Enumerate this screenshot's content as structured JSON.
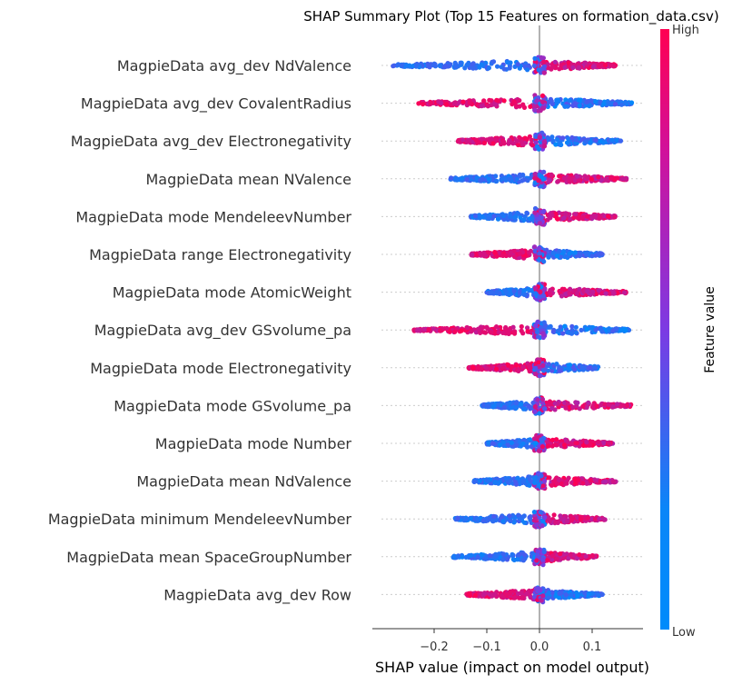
{
  "chart_data": {
    "type": "scatter",
    "subtype": "shap-beeswarm",
    "title": "SHAP Summary Plot (Top 15 Features on formation_data.csv)",
    "xlabel": "SHAP value (impact on model output)",
    "xlim": [
      -0.29,
      0.195
    ],
    "xticks": [
      -0.2,
      -0.1,
      0.0,
      0.1
    ],
    "xtick_labels": [
      "−0.2",
      "−0.1",
      "0.0",
      "0.1"
    ],
    "colorbar": {
      "label": "Feature value",
      "high": "High",
      "low": "Low"
    },
    "colors": {
      "low": "#008bfb",
      "mid": "#7c3ae3",
      "high": "#ff0052",
      "zero_line": "#999999",
      "grid": "#cccccc"
    },
    "features": [
      {
        "name": "MagpieData avg_dev NdValence",
        "min": -0.28,
        "max": 0.145,
        "low_side": "negative"
      },
      {
        "name": "MagpieData avg_dev CovalentRadius",
        "min": -0.23,
        "max": 0.175,
        "low_side": "positive"
      },
      {
        "name": "MagpieData avg_dev Electronegativity",
        "min": -0.155,
        "max": 0.155,
        "low_side": "positive"
      },
      {
        "name": "MagpieData mean NValence",
        "min": -0.17,
        "max": 0.165,
        "low_side": "negative"
      },
      {
        "name": "MagpieData mode MendeleevNumber",
        "min": -0.13,
        "max": 0.145,
        "low_side": "negative"
      },
      {
        "name": "MagpieData range Electronegativity",
        "min": -0.13,
        "max": 0.12,
        "low_side": "positive"
      },
      {
        "name": "MagpieData mode AtomicWeight",
        "min": -0.1,
        "max": 0.165,
        "low_side": "negative"
      },
      {
        "name": "MagpieData avg_dev GSvolume_pa",
        "min": -0.24,
        "max": 0.17,
        "low_side": "positive"
      },
      {
        "name": "MagpieData mode Electronegativity",
        "min": -0.135,
        "max": 0.115,
        "low_side": "positive"
      },
      {
        "name": "MagpieData mode GSvolume_pa",
        "min": -0.11,
        "max": 0.175,
        "low_side": "negative"
      },
      {
        "name": "MagpieData mode Number",
        "min": -0.1,
        "max": 0.14,
        "low_side": "negative"
      },
      {
        "name": "MagpieData mean NdValence",
        "min": -0.125,
        "max": 0.145,
        "low_side": "negative"
      },
      {
        "name": "MagpieData minimum MendeleevNumber",
        "min": -0.16,
        "max": 0.125,
        "low_side": "negative"
      },
      {
        "name": "MagpieData mean SpaceGroupNumber",
        "min": -0.165,
        "max": 0.11,
        "low_side": "negative"
      },
      {
        "name": "MagpieData avg_dev Row",
        "min": -0.14,
        "max": 0.12,
        "low_side": "positive"
      }
    ]
  }
}
